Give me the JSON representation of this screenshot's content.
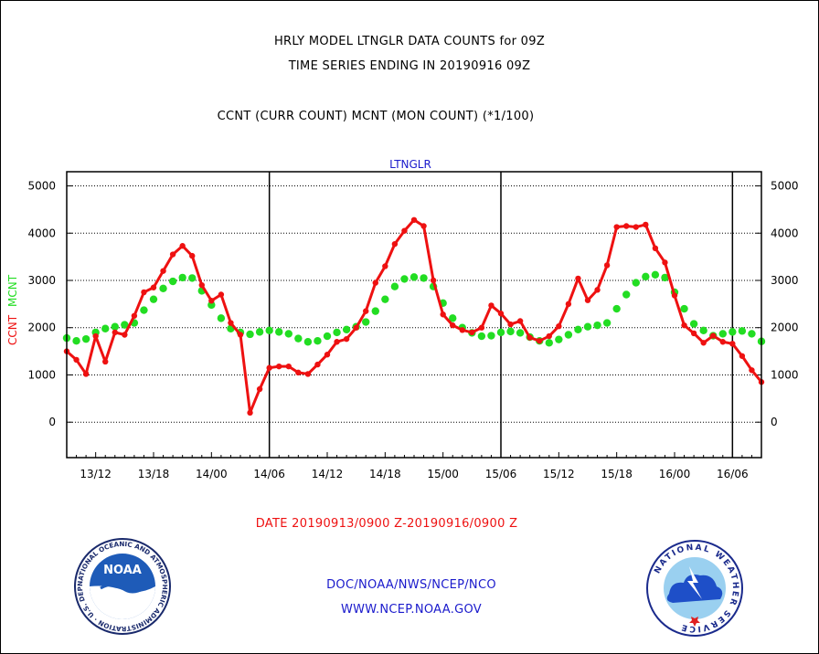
{
  "header": {
    "line1": "HRLY MODEL LTNGLR DATA COUNTS for 09Z",
    "line2": "TIME SERIES ENDING IN 20190916 09Z",
    "line3": "CCNT (CURR COUNT) MCNT (MON COUNT) (*1/100)"
  },
  "date_range": "DATE 20190913/0900 Z-20190916/0900 Z",
  "footer": {
    "org": "DOC/NOAA/NWS/NCEP/NCO",
    "url": "WWW.NCEP.NOAA.GOV"
  },
  "logos": {
    "left": "noaa-logo",
    "right": "national-weather-service-logo",
    "left_text": "NOAA",
    "left_ring": "NATIONAL OCEANIC AND ATMOSPHERIC ADMINISTRATION · U.S. DEPARTMENT OF COMMERCE",
    "right_ring": "NATIONAL WEATHER SERVICE"
  },
  "colors": {
    "ccnt": "#ee1111",
    "mcnt": "#22dd22",
    "title_blue": "#1a1acc"
  },
  "chart_data": {
    "type": "line",
    "title": "LTNGLR",
    "ylabel_parts": [
      "CCNT",
      "MCNT"
    ],
    "ylim": [
      -750,
      5300
    ],
    "yticks": [
      0,
      1000,
      2000,
      3000,
      4000,
      5000
    ],
    "xlim": [
      0,
      72
    ],
    "x_tick_labels": [
      {
        "x": 3,
        "label": "13/12"
      },
      {
        "x": 9,
        "label": "13/18"
      },
      {
        "x": 15,
        "label": "14/00"
      },
      {
        "x": 21,
        "label": "14/06"
      },
      {
        "x": 27,
        "label": "14/12"
      },
      {
        "x": 33,
        "label": "14/18"
      },
      {
        "x": 39,
        "label": "15/00"
      },
      {
        "x": 45,
        "label": "15/06"
      },
      {
        "x": 51,
        "label": "15/12"
      },
      {
        "x": 57,
        "label": "15/18"
      },
      {
        "x": 63,
        "label": "16/00"
      },
      {
        "x": 69,
        "label": "16/06"
      }
    ],
    "day_boundaries": [
      21,
      45,
      69
    ],
    "grid": true,
    "series": [
      {
        "name": "CCNT",
        "values": [
          1500,
          1320,
          1020,
          1820,
          1280,
          1900,
          1850,
          2250,
          2750,
          2850,
          3200,
          3550,
          3730,
          3520,
          2900,
          2570,
          2700,
          2100,
          1850,
          200,
          700,
          1150,
          1180,
          1180,
          1050,
          1020,
          1220,
          1430,
          1700,
          1760,
          2000,
          2350,
          2950,
          3300,
          3770,
          4050,
          4280,
          4150,
          3000,
          2280,
          2050,
          1950,
          1900,
          2000,
          2470,
          2300,
          2070,
          2140,
          1790,
          1720,
          1820,
          2030,
          2500,
          3040,
          2580,
          2800,
          3320,
          4130,
          4150,
          4130,
          4180,
          3680,
          3380,
          2680,
          2050,
          1880,
          1680,
          1830,
          1700,
          1660,
          1400,
          1100,
          850
        ]
      },
      {
        "name": "MCNT",
        "values": [
          1780,
          1720,
          1760,
          1900,
          1980,
          2020,
          2060,
          2100,
          2370,
          2600,
          2830,
          2980,
          3060,
          3050,
          2780,
          2480,
          2200,
          1980,
          1900,
          1860,
          1910,
          1940,
          1910,
          1870,
          1770,
          1700,
          1720,
          1820,
          1900,
          1960,
          2020,
          2120,
          2350,
          2600,
          2870,
          3030,
          3070,
          3050,
          2870,
          2520,
          2200,
          2000,
          1890,
          1820,
          1830,
          1900,
          1920,
          1890,
          1800,
          1720,
          1680,
          1750,
          1850,
          1960,
          2020,
          2050,
          2100,
          2400,
          2700,
          2950,
          3080,
          3120,
          3060,
          2750,
          2400,
          2080,
          1940,
          1830,
          1870,
          1910,
          1930,
          1870,
          1710
        ]
      }
    ]
  }
}
